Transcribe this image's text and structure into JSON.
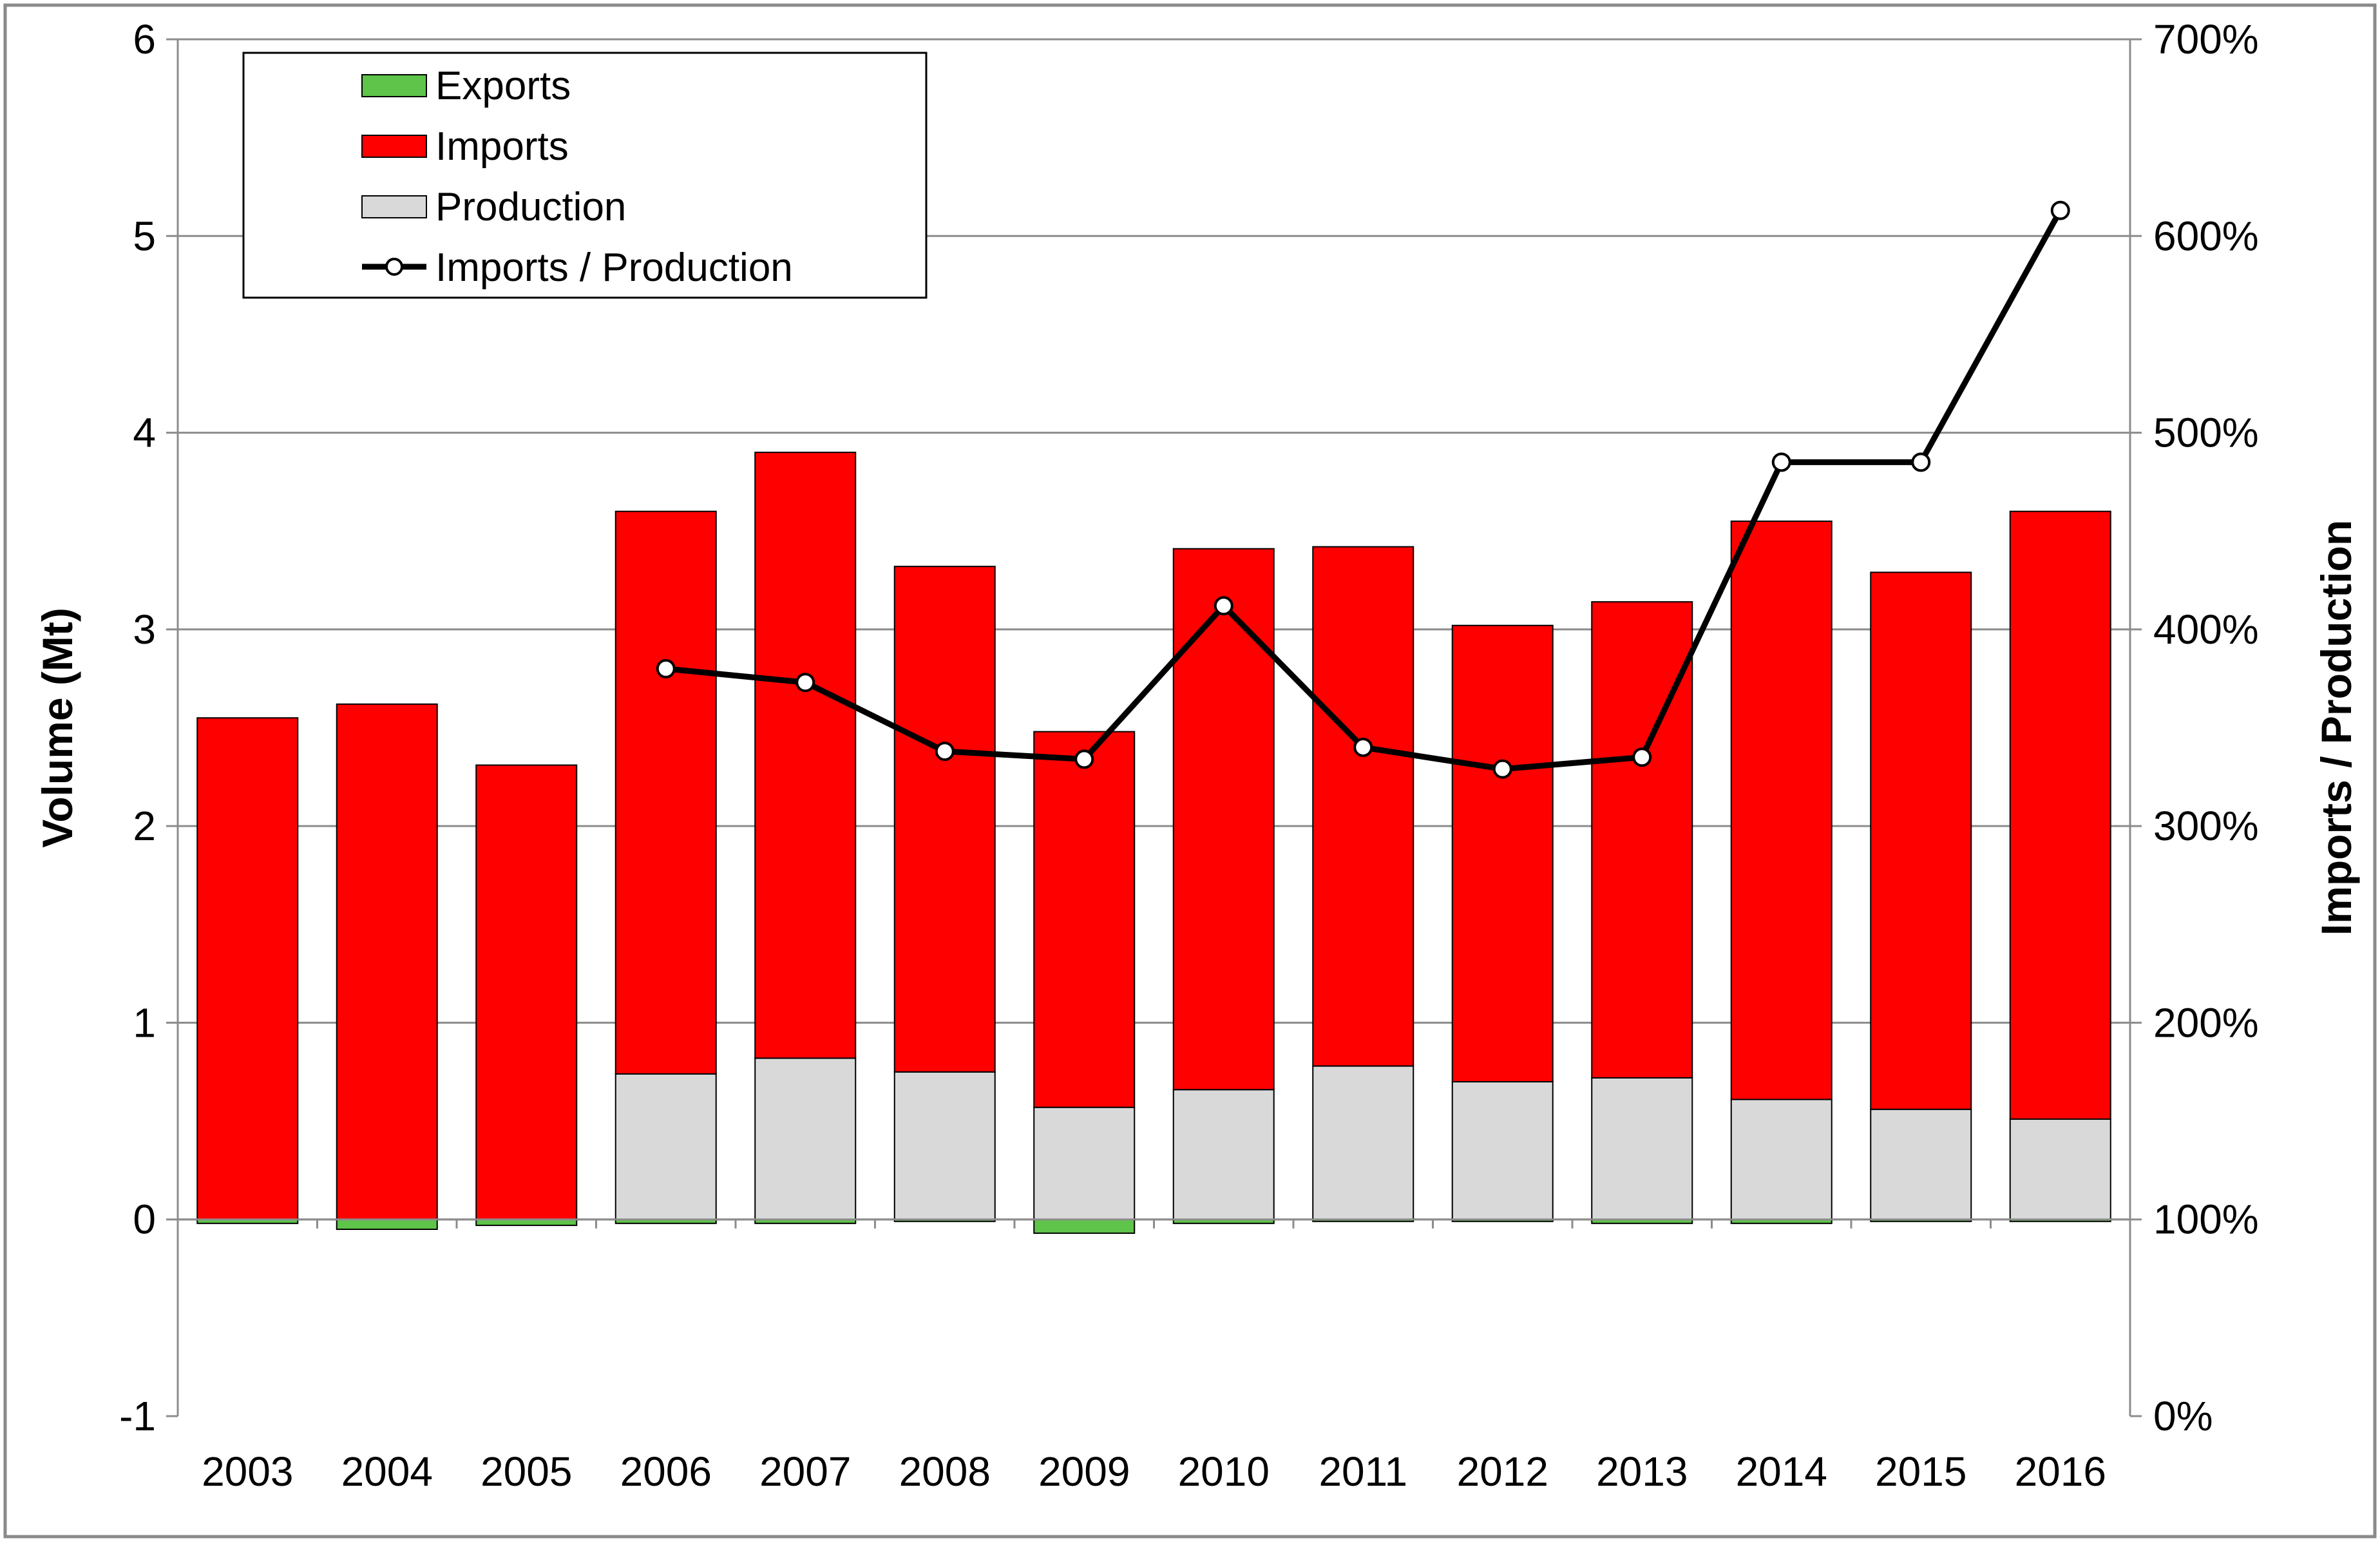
{
  "chart_data": {
    "type": "bar",
    "stacked": true,
    "categories": [
      "2003",
      "2004",
      "2005",
      "2006",
      "2007",
      "2008",
      "2009",
      "2010",
      "2011",
      "2012",
      "2013",
      "2014",
      "2015",
      "2016"
    ],
    "series": [
      {
        "name": "Exports",
        "kind": "bar",
        "axis": "left",
        "color": "#5ec44a",
        "values": [
          -0.02,
          -0.05,
          -0.03,
          -0.02,
          -0.02,
          -0.01,
          -0.07,
          -0.02,
          -0.01,
          -0.01,
          -0.02,
          -0.02,
          -0.01,
          -0.01
        ]
      },
      {
        "name": "Production",
        "kind": "bar",
        "axis": "left",
        "color": "#d9d9d9",
        "values": [
          0,
          0,
          0,
          0.74,
          0.82,
          0.75,
          0.57,
          0.66,
          0.78,
          0.7,
          0.72,
          0.61,
          0.56,
          0.51
        ]
      },
      {
        "name": "Imports",
        "kind": "bar",
        "axis": "left",
        "color": "#ff0000",
        "values": [
          2.55,
          2.62,
          2.31,
          2.86,
          3.08,
          2.57,
          1.91,
          2.75,
          2.64,
          2.32,
          2.42,
          2.94,
          2.73,
          3.09
        ]
      },
      {
        "name": "Imports / Production",
        "kind": "line",
        "axis": "right",
        "color": "#000000",
        "values": [
          null,
          null,
          null,
          380,
          373,
          338,
          334,
          412,
          340,
          329,
          335,
          485,
          485,
          613
        ]
      }
    ],
    "legend": [
      "Exports",
      "Imports",
      "Production",
      "Imports / Production"
    ],
    "title": "",
    "xlabel": "",
    "ylabel": "Volume (Mt)",
    "y2label": "Imports / Production",
    "ylim": [
      -1,
      6
    ],
    "y2lim": [
      0,
      700
    ],
    "yticks": [
      "-1",
      "0",
      "1",
      "2",
      "3",
      "4",
      "5",
      "6"
    ],
    "y2ticks": [
      "0%",
      "100%",
      "200%",
      "300%",
      "400%",
      "500%",
      "600%",
      "700%"
    ],
    "grid": true,
    "legend_position": "top-left"
  }
}
